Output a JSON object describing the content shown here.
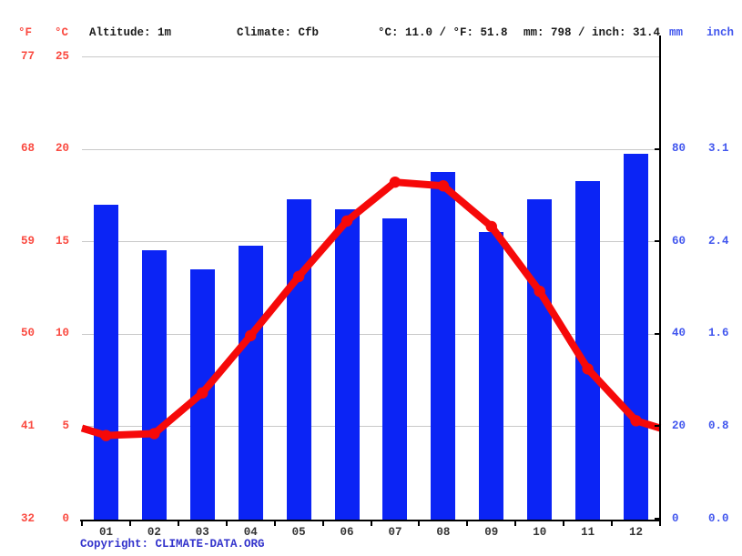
{
  "header": {
    "f_label": "°F",
    "c_label": "°C",
    "altitude": "Altitude: 1m",
    "climate": "Climate: Cfb",
    "temp_summary": "°C: 11.0 / °F: 51.8",
    "precip_summary": "mm: 798 / inch: 31.4",
    "mm_label": "mm",
    "inch_label": "inch"
  },
  "footer": {
    "copyright": "Copyright: CLIMATE-DATA.ORG"
  },
  "colors": {
    "bar_blue": "#0b24f5",
    "line_red": "#f60909",
    "left_axis_red": "#fa4a40",
    "right_axis_blue": "#4156ee",
    "gridline_gray": "#c9c9c9",
    "copyright_blue": "#3333cc",
    "month_text": "#333333"
  },
  "chart_data": {
    "type": "combo",
    "subtype": "bar+line climograph",
    "categories": [
      "01",
      "02",
      "03",
      "04",
      "05",
      "06",
      "07",
      "08",
      "09",
      "10",
      "11",
      "12"
    ],
    "series": [
      {
        "name": "Precipitation",
        "type": "bar",
        "unit": "mm",
        "values": [
          68,
          58,
          54,
          59,
          69,
          67,
          65,
          75,
          62,
          69,
          73,
          79
        ]
      },
      {
        "name": "Temperature",
        "type": "line",
        "unit": "°C",
        "values": [
          4.5,
          4.6,
          6.8,
          9.9,
          13.1,
          16.1,
          18.2,
          18.0,
          15.8,
          12.3,
          8.1,
          5.3
        ]
      }
    ],
    "left_axis": {
      "f_ticks": [
        "77",
        "68",
        "59",
        "50",
        "41",
        "32"
      ],
      "c_ticks": [
        25,
        20,
        15,
        10,
        5,
        0
      ],
      "range_c": [
        0,
        25
      ]
    },
    "right_axis": {
      "mm_ticks": [
        80,
        60,
        40,
        20,
        0
      ],
      "inch_ticks": [
        "3.1",
        "2.4",
        "1.6",
        "0.8",
        "0.0"
      ],
      "range_mm": [
        0,
        100
      ]
    },
    "grid": true,
    "legend": "none",
    "annotations": {
      "altitude": "Altitude: 1m",
      "climate_class": "Cfb",
      "mean_temp": "°C: 11.0 / °F: 51.8",
      "total_precip": "mm: 798 / inch: 31.4"
    }
  }
}
